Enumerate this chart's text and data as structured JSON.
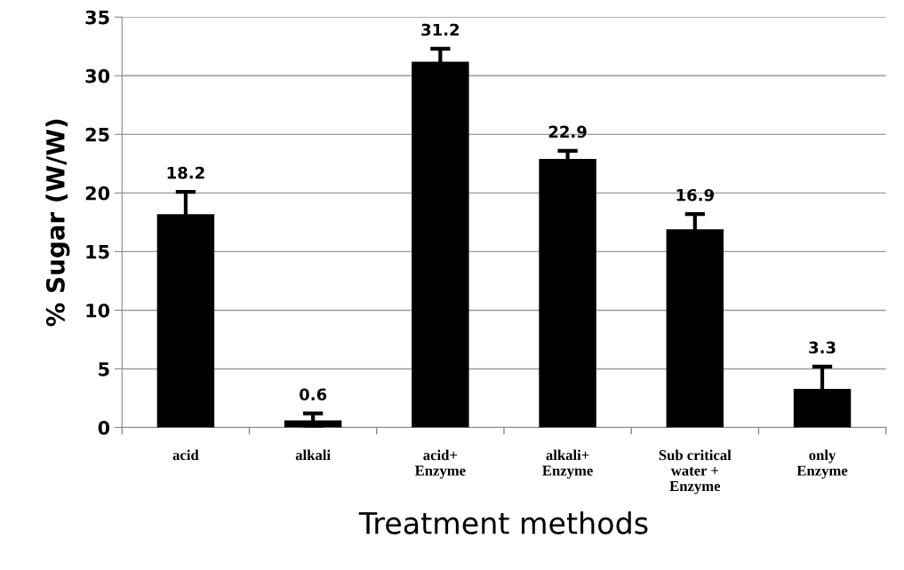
{
  "chart_data": {
    "type": "bar",
    "xlabel": "Treatment methods",
    "ylabel": "% Sugar (W/W)",
    "categories": [
      "acid",
      "alkali",
      "acid+\nEnzyme",
      "alkali+\nEnzyme",
      "Sub critical\nwater +\nEnzyme",
      "only\nEnzyme"
    ],
    "values": [
      18.2,
      0.6,
      31.2,
      22.9,
      16.9,
      3.3
    ],
    "errors": [
      1.9,
      0.6,
      1.1,
      0.7,
      1.3,
      1.9
    ],
    "color": "#000000",
    "data_labels": true,
    "ylim": [
      0,
      35
    ],
    "yticks": [
      0,
      5,
      10,
      15,
      20,
      25,
      30,
      35
    ],
    "grid": "y"
  }
}
